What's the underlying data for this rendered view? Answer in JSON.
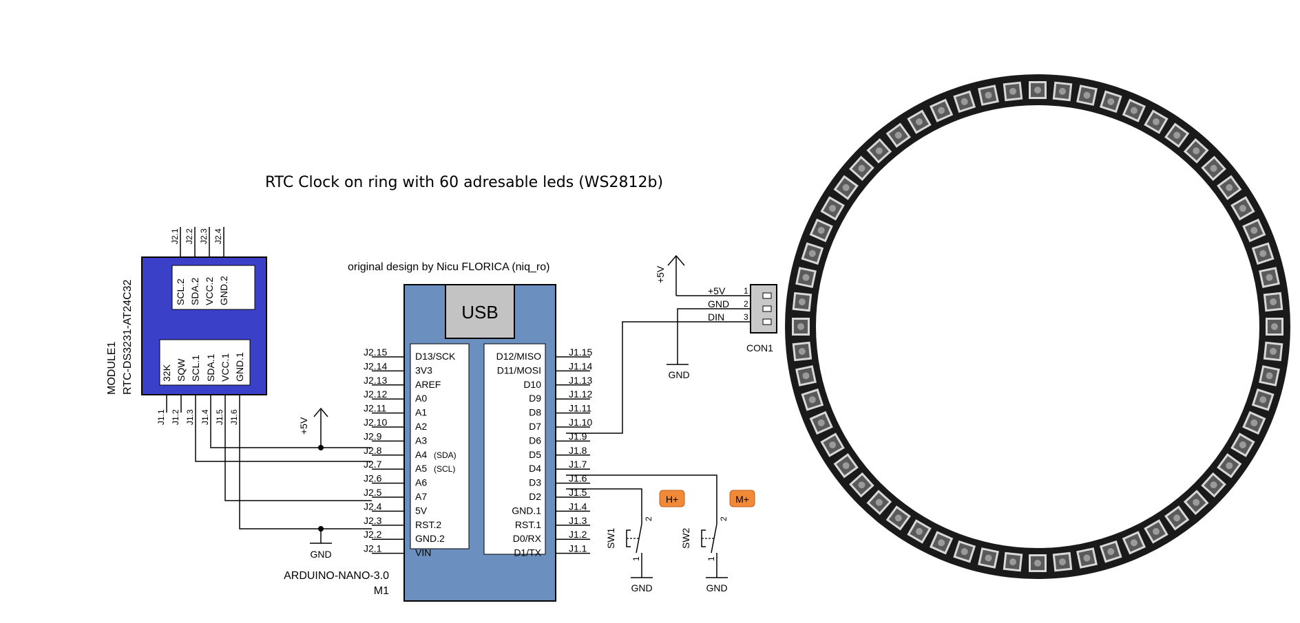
{
  "title": "RTC Clock on ring with 60 adresable leds (WS2812b)",
  "credit": "original design by Nicu FLORICA (niq_ro)",
  "colors": {
    "rtc_fill": "#3a40c8",
    "nano_fill": "#6b8fbf",
    "usb_fill": "#c3c3c3",
    "button_fill": "#f08a38",
    "led_fill": "#5a5a5a",
    "led_border": "#d8d8d8"
  },
  "rtc": {
    "name_top": "MODULE1",
    "name": "RTC-DS3231-AT24C32",
    "top_pins": [
      "SCL.2",
      "SDA.2",
      "VCC.2",
      "GND.2"
    ],
    "top_connectors": [
      "J2.1",
      "J2.2",
      "J2.3",
      "J2.4"
    ],
    "bottom_pins": [
      "32K",
      "SQW",
      "SCL.1",
      "SDA.1",
      "VCC.1",
      "GND.1"
    ],
    "bottom_connectors": [
      "J1.1",
      "J1.2",
      "J1.3",
      "J1.4",
      "J1.5",
      "J1.6"
    ]
  },
  "nano": {
    "usb": "USB",
    "name": "ARDUINO-NANO-3.0",
    "ref": "M1",
    "left_pins": [
      "D13/SCK",
      "3V3",
      "AREF",
      "A0",
      "A1",
      "A2",
      "A3",
      "A4",
      "A5",
      "A6",
      "A7",
      "5V",
      "RST.2",
      "GND.2",
      "VIN"
    ],
    "left_notes": {
      "7": "(SDA)",
      "8": "(SCL)"
    },
    "left_connectors": [
      "J2.15",
      "J2.14",
      "J2.13",
      "J2.12",
      "J2.11",
      "J2.10",
      "J2.9",
      "J2.8",
      "J2.7",
      "J2.6",
      "J2.5",
      "J2.4",
      "J2.3",
      "J2.2",
      "J2.1"
    ],
    "right_pins": [
      "D12/MISO",
      "D11/MOSI",
      "D10",
      "D9",
      "D8",
      "D7",
      "D6",
      "D5",
      "D4",
      "D3",
      "D2",
      "GND.1",
      "RST.1",
      "D0/RX",
      "D1/TX"
    ],
    "right_connectors": [
      "J1.15",
      "J1.14",
      "J1.13",
      "J1.12",
      "J1.11",
      "J1.10",
      "J1.9",
      "J1.8",
      "J1.7",
      "J1.6",
      "J1.5",
      "J1.4",
      "J1.3",
      "J1.2",
      "J1.1"
    ]
  },
  "power": {
    "vcc": "+5V",
    "gnd": "GND"
  },
  "con1": {
    "name": "CON1",
    "pins": [
      {
        "label": "+5V",
        "num": "1"
      },
      {
        "label": "GND",
        "num": "2"
      },
      {
        "label": "DIN",
        "num": "3"
      }
    ]
  },
  "switches": [
    {
      "name": "SW1",
      "badge": "H+",
      "pin1": "1",
      "pin2": "2"
    },
    {
      "name": "SW2",
      "badge": "M+",
      "pin1": "1",
      "pin2": "2"
    }
  ],
  "ring": {
    "led_count": 60
  }
}
